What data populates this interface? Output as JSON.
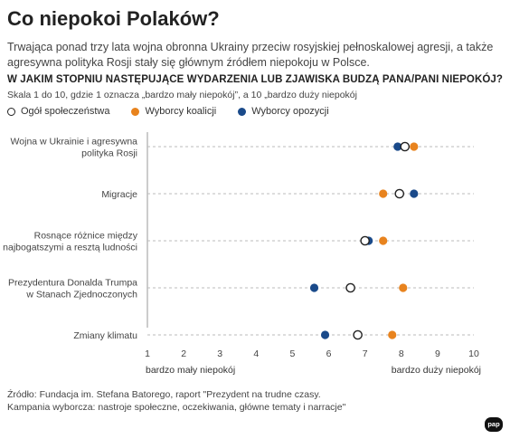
{
  "title": "Co niepokoi Polaków?",
  "lead": "Trwająca ponad trzy lata wojna obronna Ukrainy przeciw rosyjskiej pełnoskalowej agresji, a także agresywna polityka Rosji stały się głównym źródłem niepokoju w Polsce.",
  "question": "W JAKIM STOPNIU NASTĘPUJĄCE WYDARZENIA LUB ZJAWISKA BUDZĄ PANA/PANI NIEPOKÓJ?",
  "scale_note": "Skala 1 do 10, gdzie 1 oznacza „bardzo mały niepokój”, a 10 „bardzo duży niepokój",
  "legend": [
    {
      "label": "Ogół społeczeństwa",
      "style": "hollow",
      "color": "#222222"
    },
    {
      "label": "Wyborcy koalicji",
      "style": "filled",
      "color": "#e8831e"
    },
    {
      "label": "Wyborcy opozycji",
      "style": "filled",
      "color": "#1a4a8a"
    }
  ],
  "source_lines": [
    "Źródło: Fundacja im. Stefana Batorego, raport \"Prezydent na trudne czasy.",
    "Kampania wyborcza: nastroje społeczne, oczekiwania, główne tematy i narracje\""
  ],
  "logo_text": "pap",
  "chart_data": {
    "type": "scatter",
    "categories": [
      [
        "Wojna w Ukrainie i agresywna",
        "polityka Rosji"
      ],
      [
        "Migracje"
      ],
      [
        "Rosnące różnice między",
        "najbogatszymi a resztą ludności"
      ],
      [
        "Prezydentura Donalda Trumpa",
        "w Stanach Zjednoczonych"
      ],
      [
        "Zmiany klimatu"
      ]
    ],
    "series": [
      {
        "name": "Ogół społeczeństwa",
        "color": "#222222",
        "hollow": true,
        "values": [
          8.1,
          7.95,
          7.0,
          6.6,
          6.8
        ]
      },
      {
        "name": "Wyborcy koalicji",
        "color": "#e8831e",
        "hollow": false,
        "values": [
          8.35,
          7.5,
          7.5,
          8.05,
          7.75
        ]
      },
      {
        "name": "Wyborcy opozycji",
        "color": "#1a4a8a",
        "hollow": false,
        "values": [
          7.9,
          8.35,
          7.1,
          5.6,
          5.9
        ]
      }
    ],
    "xlim": [
      1,
      10
    ],
    "xticks": [
      "1",
      "2",
      "3",
      "4",
      "5",
      "6",
      "7",
      "8",
      "9",
      "10"
    ],
    "x_low_label": "bardzo mały niepokój",
    "x_high_label": "bardzo duży niepokój",
    "grid": "horizontal dashed"
  }
}
